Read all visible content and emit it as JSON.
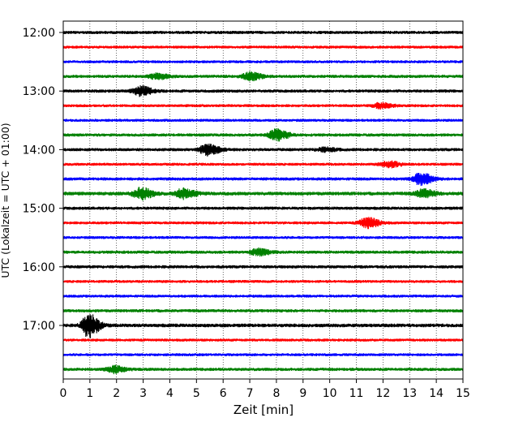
{
  "chart_data": {
    "type": "line",
    "title": "",
    "xlabel": "Zeit  [min]",
    "ylabel": "UTC (Lokalzeit = UTC + 01:00)",
    "xlim": [
      0,
      15
    ],
    "x_ticks": [
      0,
      1,
      2,
      3,
      4,
      5,
      6,
      7,
      8,
      9,
      10,
      11,
      12,
      13,
      14,
      15
    ],
    "y_tick_labels": [
      "12:00",
      "13:00",
      "14:00",
      "15:00",
      "16:00",
      "17:00"
    ],
    "grid": "vertical dotted at each minute",
    "color_cycle": [
      "#000000",
      "#ff0000",
      "#0000ff",
      "#008000"
    ],
    "trace_interval_minutes": 15,
    "traces": [
      {
        "start": "12:00",
        "color": "#000000",
        "noise": 0.22,
        "events": []
      },
      {
        "start": "12:15",
        "color": "#ff0000",
        "noise": 0.2,
        "events": []
      },
      {
        "start": "12:30",
        "color": "#0000ff",
        "noise": 0.2,
        "events": []
      },
      {
        "start": "12:45",
        "color": "#008000",
        "noise": 0.22,
        "events": [
          {
            "t": 3.5,
            "amp": 0.35
          },
          {
            "t": 7.0,
            "amp": 0.5
          }
        ]
      },
      {
        "start": "13:00",
        "color": "#000000",
        "noise": 0.22,
        "events": [
          {
            "t": 2.9,
            "amp": 0.6
          }
        ]
      },
      {
        "start": "13:15",
        "color": "#ff0000",
        "noise": 0.2,
        "events": [
          {
            "t": 11.9,
            "amp": 0.35
          }
        ]
      },
      {
        "start": "13:30",
        "color": "#0000ff",
        "noise": 0.2,
        "events": []
      },
      {
        "start": "13:45",
        "color": "#008000",
        "noise": 0.22,
        "events": [
          {
            "t": 8.0,
            "amp": 0.75
          }
        ]
      },
      {
        "start": "14:00",
        "color": "#000000",
        "noise": 0.22,
        "events": [
          {
            "t": 5.4,
            "amp": 0.75
          },
          {
            "t": 9.8,
            "amp": 0.25
          }
        ]
      },
      {
        "start": "14:15",
        "color": "#ff0000",
        "noise": 0.2,
        "events": [
          {
            "t": 12.2,
            "amp": 0.4
          }
        ]
      },
      {
        "start": "14:30",
        "color": "#0000ff",
        "noise": 0.22,
        "events": [
          {
            "t": 13.4,
            "amp": 0.8
          }
        ]
      },
      {
        "start": "14:45",
        "color": "#008000",
        "noise": 0.25,
        "events": [
          {
            "t": 2.9,
            "amp": 0.75
          },
          {
            "t": 4.5,
            "amp": 0.65
          },
          {
            "t": 13.5,
            "amp": 0.5
          }
        ]
      },
      {
        "start": "15:00",
        "color": "#000000",
        "noise": 0.22,
        "events": []
      },
      {
        "start": "15:15",
        "color": "#ff0000",
        "noise": 0.2,
        "events": [
          {
            "t": 11.4,
            "amp": 0.7
          }
        ]
      },
      {
        "start": "15:30",
        "color": "#0000ff",
        "noise": 0.2,
        "events": []
      },
      {
        "start": "15:45",
        "color": "#008000",
        "noise": 0.22,
        "events": [
          {
            "t": 7.3,
            "amp": 0.45
          }
        ]
      },
      {
        "start": "16:00",
        "color": "#000000",
        "noise": 0.22,
        "events": []
      },
      {
        "start": "16:15",
        "color": "#ff0000",
        "noise": 0.2,
        "events": []
      },
      {
        "start": "16:30",
        "color": "#0000ff",
        "noise": 0.2,
        "events": []
      },
      {
        "start": "16:45",
        "color": "#008000",
        "noise": 0.22,
        "events": []
      },
      {
        "start": "17:00",
        "color": "#000000",
        "noise": 0.25,
        "events": [
          {
            "t": 0.95,
            "amp": 1.6
          }
        ]
      },
      {
        "start": "17:15",
        "color": "#ff0000",
        "noise": 0.2,
        "events": []
      },
      {
        "start": "17:30",
        "color": "#0000ff",
        "noise": 0.2,
        "events": []
      },
      {
        "start": "17:45",
        "color": "#008000",
        "noise": 0.22,
        "events": [
          {
            "t": 1.9,
            "amp": 0.45
          }
        ]
      }
    ]
  }
}
